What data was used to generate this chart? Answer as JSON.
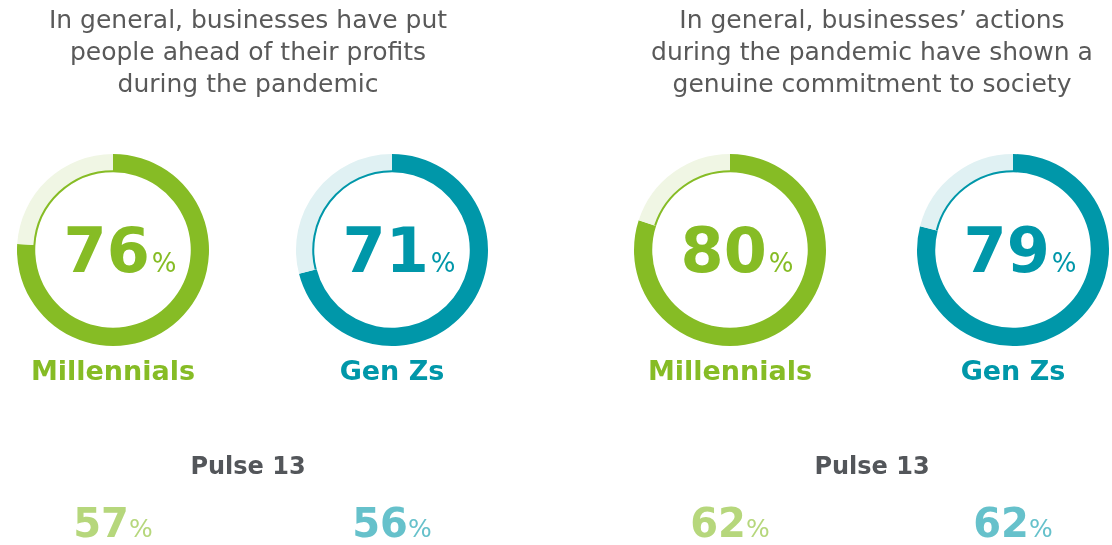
{
  "chart_data": [
    {
      "type": "donut",
      "title": "In general, businesses have put people ahead of their profits during the pandemic",
      "subtitle": "Pulse 13",
      "categories": [
        "Millennials",
        null
      ],
      "values": [
        76,
        24
      ],
      "colors": [
        "#86bc25",
        "#f0f6e4"
      ],
      "value_labels": [
        "76%",
        null
      ],
      "annotations": [
        "57%"
      ]
    },
    {
      "type": "donut",
      "categories": [
        "Gen Zs",
        null
      ],
      "values": [
        71,
        29
      ],
      "colors": [
        "#0097a9",
        "#e0f1f3"
      ],
      "value_labels": [
        "71%",
        null
      ],
      "annotations": [
        "56%"
      ]
    },
    {
      "type": "donut",
      "title": "In general, businesses’ actions during the pandemic have shown a genuine commitment to society",
      "subtitle": "Pulse 13",
      "categories": [
        "Millennials",
        null
      ],
      "values": [
        80,
        20
      ],
      "colors": [
        "#86bc25",
        "#f0f6e4"
      ],
      "value_labels": [
        "80%",
        null
      ],
      "annotations": [
        "62%"
      ]
    },
    {
      "type": "donut",
      "categories": [
        "Gen Zs",
        null
      ],
      "values": [
        79,
        21
      ],
      "colors": [
        "#0097a9",
        "#e0f1f3"
      ],
      "value_labels": [
        "79%",
        null
      ],
      "annotations": [
        "62%"
      ]
    }
  ]
}
